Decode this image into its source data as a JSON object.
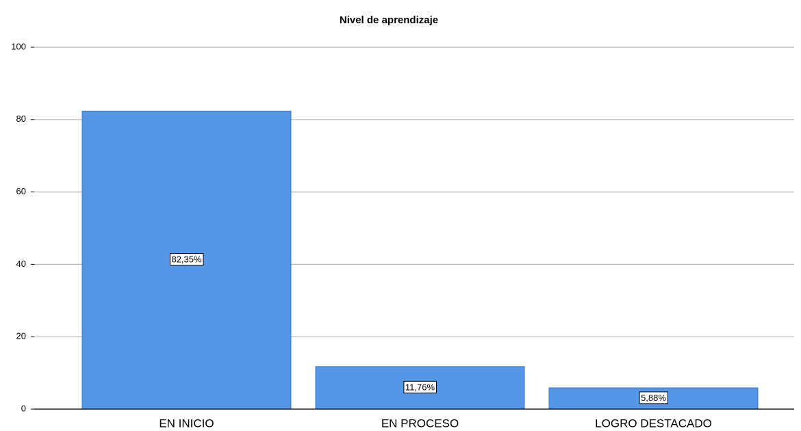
{
  "chart_data": {
    "type": "bar",
    "title": "Nivel de aprendizaje",
    "categories": [
      "EN INICIO",
      "EN PROCESO",
      "LOGRO DESTACADO"
    ],
    "values": [
      82.35,
      11.76,
      5.88
    ],
    "value_labels": [
      "82,35%",
      "11,76%",
      "5,88%"
    ],
    "color": "#5596e6",
    "ylim": [
      0,
      100
    ],
    "yticks": [
      0,
      20,
      40,
      60,
      80,
      100
    ],
    "grid": true
  }
}
